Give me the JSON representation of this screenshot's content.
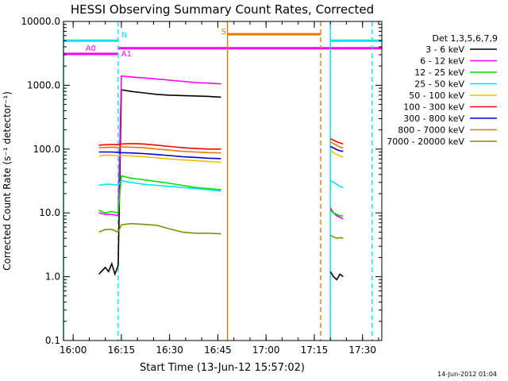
{
  "chart_data": {
    "type": "line",
    "title": "HESSI Observing Summary Count Rates, Corrected",
    "xlabel": "Start Time (13-Jun-12 15:57:02)",
    "ylabel": "Corrected Count Rate (s⁻¹ detector⁻¹)",
    "xlim": [
      "15:57",
      "17:36"
    ],
    "ylim": [
      0.1,
      10000
    ],
    "yscale": "log",
    "x_ticks": [
      "16:00",
      "16:15",
      "16:30",
      "16:45",
      "17:00",
      "17:15",
      "17:30"
    ],
    "y_ticks": [
      "0.1",
      "1.0",
      "10.0",
      "100.0",
      "1000.0",
      "10000.0"
    ],
    "legend_title": "Det 1,3,5,6,7,9",
    "legend_position": "right",
    "grid": false,
    "series": [
      {
        "name": "3 - 6 keV",
        "color": "#000000",
        "segments": [
          {
            "x": [
              "16:08",
              "16:10",
              "16:11",
              "16:12",
              "16:13",
              "16:14",
              "16:15",
              "16:18",
              "16:22",
              "16:26",
              "16:30",
              "16:34",
              "16:38",
              "16:42",
              "16:46"
            ],
            "y": [
              1.1,
              1.4,
              1.2,
              1.6,
              1.1,
              1.5,
              850,
              800,
              760,
              720,
              700,
              690,
              680,
              670,
              650
            ]
          },
          {
            "x": [
              "17:20",
              "17:21",
              "17:22",
              "17:23",
              "17:24"
            ],
            "y": [
              1.2,
              1.0,
              0.9,
              1.1,
              1.0
            ]
          }
        ]
      },
      {
        "name": "6 - 12 keV",
        "color": "#ff00ff",
        "segments": [
          {
            "x": [
              "16:08",
              "16:10",
              "16:12",
              "16:14",
              "16:15",
              "16:18",
              "16:22",
              "16:26",
              "16:30",
              "16:34",
              "16:38",
              "16:42",
              "16:46"
            ],
            "y": [
              10,
              9.5,
              9.5,
              9,
              1400,
              1350,
              1300,
              1250,
              1200,
              1150,
              1100,
              1080,
              1050
            ]
          },
          {
            "x": [
              "17:20",
              "17:21",
              "17:22",
              "17:23",
              "17:24"
            ],
            "y": [
              12,
              10,
              9,
              8.5,
              8
            ]
          }
        ]
      },
      {
        "name": "12 - 25 keV",
        "color": "#00dd00",
        "segments": [
          {
            "x": [
              "16:08",
              "16:10",
              "16:12",
              "16:14",
              "16:15",
              "16:18",
              "16:22",
              "16:26",
              "16:30",
              "16:34",
              "16:38",
              "16:42",
              "16:46"
            ],
            "y": [
              11,
              10,
              10.5,
              10,
              38,
              35,
              33,
              31,
              29,
              27,
              25,
              24,
              23
            ]
          },
          {
            "x": [
              "17:20",
              "17:21",
              "17:22",
              "17:23",
              "17:24"
            ],
            "y": [
              11,
              10,
              9.5,
              9,
              9
            ]
          }
        ]
      },
      {
        "name": "25 - 50 keV",
        "color": "#00e5ee",
        "segments": [
          {
            "x": [
              "16:08",
              "16:10",
              "16:12",
              "16:14",
              "16:15",
              "16:18",
              "16:22",
              "16:26",
              "16:30",
              "16:34",
              "16:38",
              "16:42",
              "16:46"
            ],
            "y": [
              27,
              28,
              28,
              27,
              32,
              30,
              28,
              27,
              26,
              25,
              24,
              23,
              22
            ]
          },
          {
            "x": [
              "17:20",
              "17:21",
              "17:22",
              "17:23",
              "17:24"
            ],
            "y": [
              32,
              30,
              28,
              26,
              25
            ]
          }
        ]
      },
      {
        "name": "50 - 100 keV",
        "color": "#f0c000",
        "segments": [
          {
            "x": [
              "16:08",
              "16:10",
              "16:12",
              "16:14",
              "16:15",
              "16:18",
              "16:22",
              "16:26",
              "16:30",
              "16:34",
              "16:38",
              "16:42",
              "16:46"
            ],
            "y": [
              78,
              80,
              80,
              79,
              80,
              78,
              76,
              73,
              70,
              68,
              66,
              64,
              62
            ]
          },
          {
            "x": [
              "17:20",
              "17:21",
              "17:22",
              "17:23",
              "17:24"
            ],
            "y": [
              95,
              88,
              82,
              78,
              75
            ]
          }
        ]
      },
      {
        "name": "100 - 300 keV",
        "color": "#ff0000",
        "segments": [
          {
            "x": [
              "16:08",
              "16:10",
              "16:12",
              "16:14",
              "16:15",
              "16:18",
              "16:22",
              "16:26",
              "16:30",
              "16:34",
              "16:38",
              "16:42",
              "16:46"
            ],
            "y": [
              115,
              117,
              118,
              117,
              120,
              122,
              120,
              115,
              110,
              105,
              102,
              100,
              100
            ]
          },
          {
            "x": [
              "17:20",
              "17:21",
              "17:22",
              "17:23",
              "17:24"
            ],
            "y": [
              145,
              138,
              130,
              125,
              120
            ]
          }
        ]
      },
      {
        "name": "300 - 800 keV",
        "color": "#0000cc",
        "segments": [
          {
            "x": [
              "16:08",
              "16:10",
              "16:12",
              "16:14",
              "16:15",
              "16:18",
              "16:22",
              "16:26",
              "16:30",
              "16:34",
              "16:38",
              "16:42",
              "16:46"
            ],
            "y": [
              90,
              90,
              90,
              89,
              88,
              87,
              85,
              82,
              79,
              76,
              74,
              72,
              71
            ]
          },
          {
            "x": [
              "17:20",
              "17:21",
              "17:22",
              "17:23",
              "17:24"
            ],
            "y": [
              110,
              104,
              98,
              94,
              92
            ]
          }
        ]
      },
      {
        "name": "800 - 7000 keV",
        "color": "#e87800",
        "segments": [
          {
            "x": [
              "16:08",
              "16:10",
              "16:12",
              "16:14",
              "16:15",
              "16:18",
              "16:22",
              "16:26",
              "16:30",
              "16:34",
              "16:38",
              "16:42",
              "16:46"
            ],
            "y": [
              105,
              106,
              107,
              106,
              108,
              107,
              105,
              100,
              96,
              92,
              90,
              88,
              87
            ]
          },
          {
            "x": [
              "17:20",
              "17:21",
              "17:22",
              "17:23",
              "17:24"
            ],
            "y": [
              130,
              122,
              114,
              108,
              104
            ]
          }
        ]
      },
      {
        "name": "7000 - 20000 keV",
        "color": "#8b8b00",
        "segments": [
          {
            "x": [
              "16:08",
              "16:10",
              "16:12",
              "16:14",
              "16:15",
              "16:18",
              "16:22",
              "16:26",
              "16:30",
              "16:34",
              "16:38",
              "16:42",
              "16:46"
            ],
            "y": [
              5,
              5.5,
              5.5,
              5,
              6.5,
              6.8,
              6.6,
              6.4,
              5.6,
              5,
              4.8,
              4.8,
              4.7
            ]
          },
          {
            "x": [
              "17:20",
              "17:21",
              "17:22",
              "17:23",
              "17:24"
            ],
            "y": [
              4.5,
              4.2,
              4,
              4.1,
              4
            ]
          }
        ]
      }
    ],
    "annotations": [
      {
        "kind": "bar",
        "label": "N",
        "color": "#00e5ee",
        "level": 5000,
        "x_start": "15:57",
        "x_end": "16:14",
        "label_side": "end"
      },
      {
        "kind": "bar",
        "label": "",
        "color": "#00e5ee",
        "level": 5000,
        "x_start": "17:20",
        "x_end": "17:36"
      },
      {
        "kind": "bar",
        "label": "A0",
        "color": "#ff00ff",
        "level": 3100,
        "x_start": "15:57",
        "x_end": "16:14",
        "label_side": "middle"
      },
      {
        "kind": "bar",
        "label": "A1",
        "color": "#ff00ff",
        "level": 3800,
        "x_start": "16:14",
        "x_end": "17:36",
        "label_side": "start"
      },
      {
        "kind": "bar",
        "label": "S",
        "color": "#e87800",
        "level": 6300,
        "x_start": "16:48",
        "x_end": "17:17",
        "label_side": "start"
      },
      {
        "kind": "vline",
        "x": "15:57",
        "color": "#00e5ee",
        "style": "solid"
      },
      {
        "kind": "vline",
        "x": "16:14",
        "color": "#00e5ee",
        "style": "dashed"
      },
      {
        "kind": "vline",
        "x": "16:48",
        "color": "#e87800",
        "style": "solid"
      },
      {
        "kind": "vline",
        "x": "17:17",
        "color": "#e87800",
        "style": "dashed"
      },
      {
        "kind": "vline",
        "x": "17:20",
        "color": "#00e5ee",
        "style": "solid"
      },
      {
        "kind": "vline",
        "x": "17:33",
        "color": "#00e5ee",
        "style": "dashed"
      }
    ]
  },
  "footer": {
    "timestamp": "14-Jun-2012 01:04"
  }
}
